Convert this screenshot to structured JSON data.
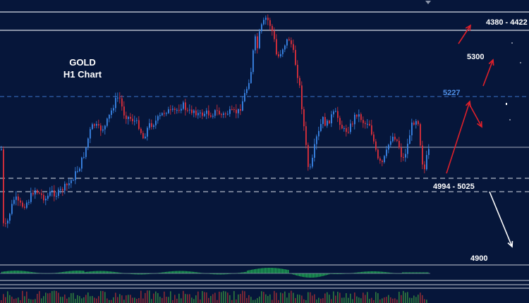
{
  "title_line1": "GOLD",
  "title_line2": "H1 Chart",
  "colors": {
    "background": "#06163a",
    "bull": "#3a86e8",
    "bear": "#e0303a",
    "level_solid": "#d8dde8",
    "level_dashed": "#d8dde8",
    "level_blue": "#3a73c8",
    "arrow_red": "#e0202a",
    "arrow_white": "#ffffff",
    "macd": "#1faa55"
  },
  "chart_data": {
    "type": "candlestick",
    "y_levels": [
      {
        "label": "4380 - 4422",
        "value": 4422,
        "style": "solid"
      },
      {
        "label": "5300",
        "value": 5300,
        "style": "solid"
      },
      {
        "label": "5227",
        "value": 5227,
        "style": "dashed-blue"
      },
      {
        "label": "4994 - 5025",
        "value": 5025,
        "style": "dashed"
      },
      {
        "label": "4900",
        "value": 4900,
        "style": "dashed"
      }
    ],
    "annotations": [
      "4380 - 4422",
      "5300",
      "5227",
      "4994 - 5025",
      "4900"
    ]
  }
}
